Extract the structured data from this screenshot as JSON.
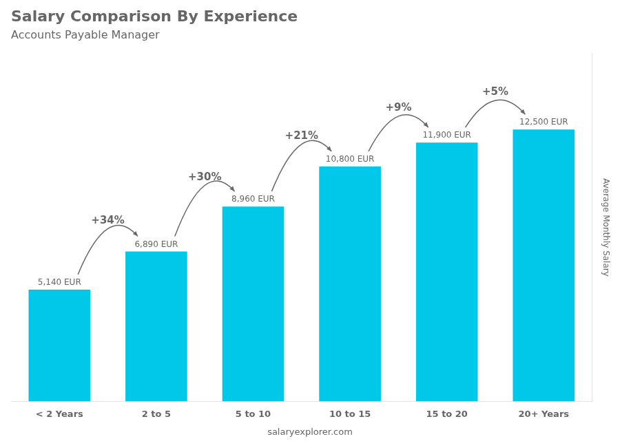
{
  "chart_data": {
    "type": "bar",
    "title": "Salary Comparison By Experience",
    "subtitle": "Accounts Payable Manager",
    "ylabel": "Average Monthly Salary",
    "categories": [
      "< 2 Years",
      "2 to 5",
      "5 to 10",
      "10 to 15",
      "15 to 20",
      "20+ Years"
    ],
    "values": [
      5140,
      6890,
      8960,
      10800,
      11900,
      12500
    ],
    "value_labels": [
      "5,140 EUR",
      "6,890 EUR",
      "8,960 EUR",
      "10,800 EUR",
      "11,900 EUR",
      "12,500 EUR"
    ],
    "data_labels": true,
    "color": "#00c8e8",
    "ylim": [
      0,
      16000
    ],
    "tick_labels": "x",
    "grid": false,
    "annotations": [
      {
        "text": "+34%",
        "between": [
          "< 2 Years",
          "2 to 5"
        ]
      },
      {
        "text": "+30%",
        "between": [
          "2 to 5",
          "5 to 10"
        ]
      },
      {
        "text": "+21%",
        "between": [
          "5 to 10",
          "10 to 15"
        ]
      },
      {
        "text": "+9%",
        "between": [
          "10 to 15",
          "15 to 20"
        ]
      },
      {
        "text": "+5%",
        "between": [
          "15 to 20",
          "20+ Years"
        ]
      },
      {
        "text": "salaryexplorer.com"
      }
    ]
  }
}
